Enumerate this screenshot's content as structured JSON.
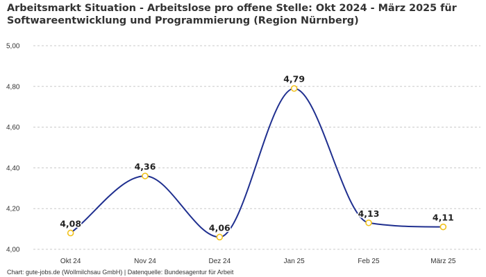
{
  "chart_data": {
    "type": "line",
    "title": "Arbeitsmarkt Situation - Arbeitslose pro offene Stelle: Okt 2024 - März 2025 für Softwareentwicklung und Programmierung (Region Nürnberg)",
    "xlabel": "",
    "ylabel": "",
    "categories": [
      "Okt 24",
      "Nov 24",
      "Dez 24",
      "Jan 25",
      "Feb 25",
      "März 25"
    ],
    "values": [
      4.08,
      4.36,
      4.06,
      4.79,
      4.13,
      4.11
    ],
    "data_labels": [
      "4,08",
      "4,36",
      "4,06",
      "4,79",
      "4,13",
      "4,11"
    ],
    "ylim": [
      4.0,
      5.0
    ],
    "yticks": [
      4.0,
      4.2,
      4.4,
      4.6,
      4.8,
      5.0
    ],
    "ytick_labels": [
      "4,00",
      "4,20",
      "4,40",
      "4,60",
      "4,80",
      "5,00"
    ],
    "grid": "horizontal dashed",
    "legend": "none",
    "smooth": true,
    "colors": {
      "line": "#1f2f8f",
      "marker_stroke": "#f2c21b",
      "marker_fill": "#ffffff",
      "grid": "#c8c8c8",
      "text": "#333333"
    }
  },
  "source_note": "Chart: gute-jobs.de (Wollmilchsau GmbH) | Datenquelle: Bundesagentur für Arbeit"
}
